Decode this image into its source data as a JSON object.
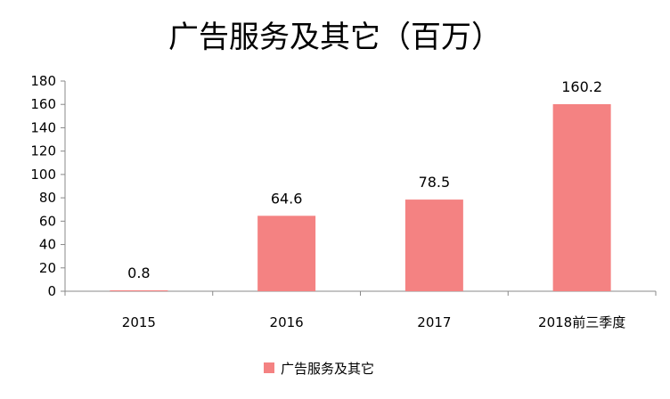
{
  "chart_data": {
    "type": "bar",
    "title": "广告服务及其它（百万）",
    "categories": [
      "2015",
      "2016",
      "2017",
      "2018前三季度"
    ],
    "series": [
      {
        "name": "广告服务及其它",
        "values": [
          0.8,
          64.6,
          78.5,
          160.2
        ]
      }
    ],
    "data_labels": [
      "0.8",
      "64.6",
      "78.5",
      "160.2"
    ],
    "yticks": [
      0,
      20,
      40,
      60,
      80,
      100,
      120,
      140,
      160,
      180
    ],
    "ylim": [
      0,
      180
    ],
    "grid": false,
    "legend_position": "bottom",
    "bar_color": "#F48282"
  }
}
